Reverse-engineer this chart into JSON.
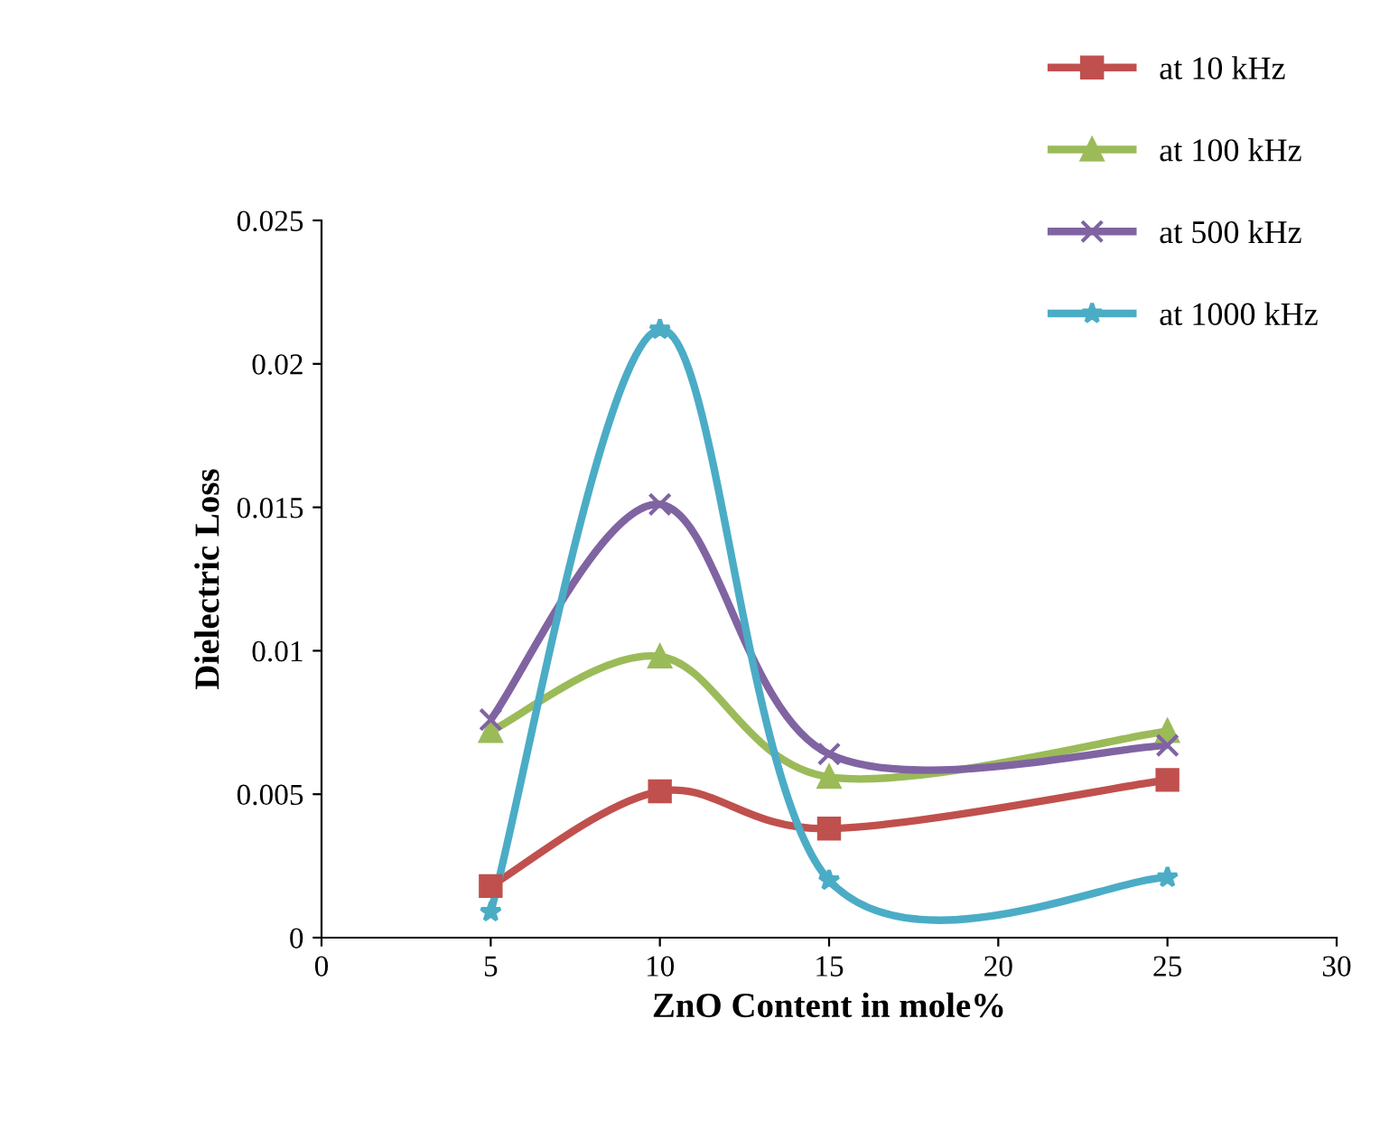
{
  "chart_data": {
    "type": "line",
    "xlabel": "ZnO Content in mole%",
    "ylabel": "Dielectric Loss",
    "x": [
      5,
      10,
      15,
      25
    ],
    "series": [
      {
        "name": "at 10 kHz",
        "color": "#c0504d",
        "marker": "square",
        "values": [
          0.0018,
          0.0051,
          0.0038,
          0.0055
        ]
      },
      {
        "name": "at 100 kHz",
        "color": "#9bbb59",
        "marker": "triangle",
        "values": [
          0.0072,
          0.0098,
          0.0056,
          0.0072
        ]
      },
      {
        "name": "at 500 kHz",
        "color": "#8064a2",
        "marker": "cross",
        "values": [
          0.0076,
          0.0151,
          0.0064,
          0.0067
        ]
      },
      {
        "name": "at 1000 kHz",
        "color": "#4bacc6",
        "marker": "star",
        "values": [
          0.0009,
          0.0212,
          0.002,
          0.0021
        ]
      }
    ],
    "xlim": [
      0,
      30
    ],
    "xticks": [
      0,
      5,
      10,
      15,
      20,
      25,
      30
    ],
    "ylim": [
      0,
      0.025
    ],
    "yticks": [
      {
        "value": 0,
        "label": "0"
      },
      0.005,
      0.01,
      0.015,
      0.02,
      0.025
    ],
    "grid": false,
    "legend": "top right",
    "line_style": "solid"
  }
}
